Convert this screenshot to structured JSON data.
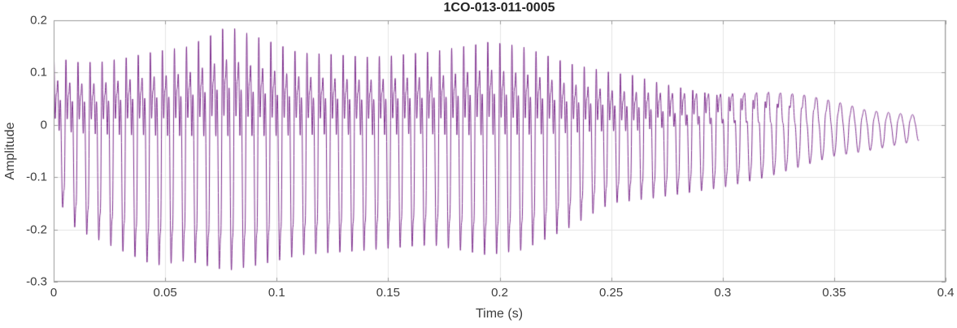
{
  "chart_data": {
    "type": "line",
    "title": "1CO-013-011-0005",
    "xlabel": "Time (s)",
    "ylabel": "Amplitude",
    "xlim": [
      0,
      0.4
    ],
    "ylim": [
      -0.3,
      0.2
    ],
    "xticks": [
      0,
      0.05,
      0.1,
      0.15,
      0.2,
      0.25,
      0.3,
      0.35,
      0.4
    ],
    "xtick_labels": [
      "0",
      "0.05",
      "0.1",
      "0.15",
      "0.2",
      "0.25",
      "0.3",
      "0.35",
      "0.4"
    ],
    "yticks": [
      -0.3,
      -0.2,
      -0.1,
      0,
      0.1,
      0.2
    ],
    "ytick_labels": [
      "-0.3",
      "-0.2",
      "-0.1",
      "0",
      "0.1",
      "0.2"
    ],
    "grid": true,
    "legend": false,
    "line_color": "#7E2F8E",
    "grid_color": "#E4E4E4",
    "axis_color": "#9a9a9a",
    "text_color": "#3d3d3d",
    "waveform": {
      "description": "dense quasi-periodic voiced waveform, asymmetric: positive peaks to ~0.19, negative spikes to ~ -0.28, decaying to a near-sinusoid tail ending ~0.388 s",
      "fundamental_hz": 185,
      "harmonic_amps": [
        1,
        0.55,
        0.42,
        0.3,
        0.22,
        0.14
      ],
      "harmonic_phases": [
        0,
        1.2,
        2.1,
        0.5,
        1.7,
        0.9
      ],
      "duration_s": 0.388,
      "sample_rate_hz": 12000,
      "envelope_t": [
        0,
        0.01,
        0.02,
        0.045,
        0.06,
        0.078,
        0.09,
        0.11,
        0.14,
        0.17,
        0.195,
        0.21,
        0.23,
        0.25,
        0.27,
        0.3,
        0.32,
        0.335,
        0.35,
        0.365,
        0.388
      ],
      "envelope_upper": [
        0.13,
        0.12,
        0.12,
        0.14,
        0.15,
        0.19,
        0.17,
        0.14,
        0.13,
        0.14,
        0.16,
        0.15,
        0.12,
        0.1,
        0.09,
        0.08,
        0.08,
        0.07,
        0.05,
        0.03,
        0.02
      ],
      "envelope_lower": [
        -0.13,
        -0.2,
        -0.22,
        -0.27,
        -0.26,
        -0.28,
        -0.27,
        -0.25,
        -0.24,
        -0.23,
        -0.25,
        -0.24,
        -0.2,
        -0.15,
        -0.14,
        -0.12,
        -0.1,
        -0.08,
        -0.06,
        -0.05,
        -0.03
      ]
    }
  }
}
